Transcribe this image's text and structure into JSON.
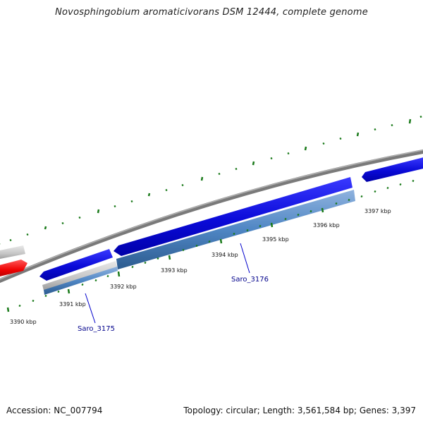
{
  "title": "Novosphingobium aromaticivorans DSM 12444, complete genome",
  "footer": {
    "accession": "Accession: NC_007794",
    "summary": "Topology: circular; Length: 3,561,584 bp; Genes: 3,397"
  },
  "ticks": {
    "labels": [
      "3390 kbp",
      "3391 kbp",
      "3392 kbp",
      "3393 kbp",
      "3394 kbp",
      "3395 kbp",
      "3396 kbp",
      "3397 kbp"
    ]
  },
  "genes": [
    {
      "id": "Saro_3175",
      "label": "Saro_3175"
    },
    {
      "id": "Saro_3176",
      "label": "Saro_3176"
    }
  ],
  "colors": {
    "backbone": "#7a7a7a",
    "cds_forward": "#1010e0",
    "cds_reverse": "#4f86c4",
    "highlight": "#ff1a1a",
    "gray_feature": "#c8c8c8",
    "tick": "#1a7a1a",
    "label_text": "#00008b"
  }
}
